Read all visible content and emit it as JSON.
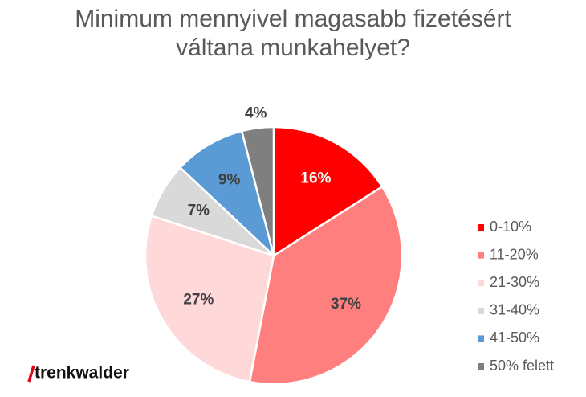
{
  "chart_data": {
    "type": "pie",
    "title": "Minimum mennyivel magasabb fizetésért váltana munkahelyet?",
    "categories": [
      "0-10%",
      "11-20%",
      "21-30%",
      "31-40%",
      "41-50%",
      "50% felett"
    ],
    "values": [
      16,
      37,
      27,
      7,
      9,
      4
    ],
    "value_labels": [
      "16%",
      "37%",
      "27%",
      "7%",
      "9%",
      "4%"
    ],
    "colors": [
      "#ff0000",
      "#ff7f7f",
      "#ffd9d9",
      "#d9d9d9",
      "#5b9bd5",
      "#7f7f7f"
    ],
    "legend": "right"
  },
  "logo": "trenkwalder"
}
